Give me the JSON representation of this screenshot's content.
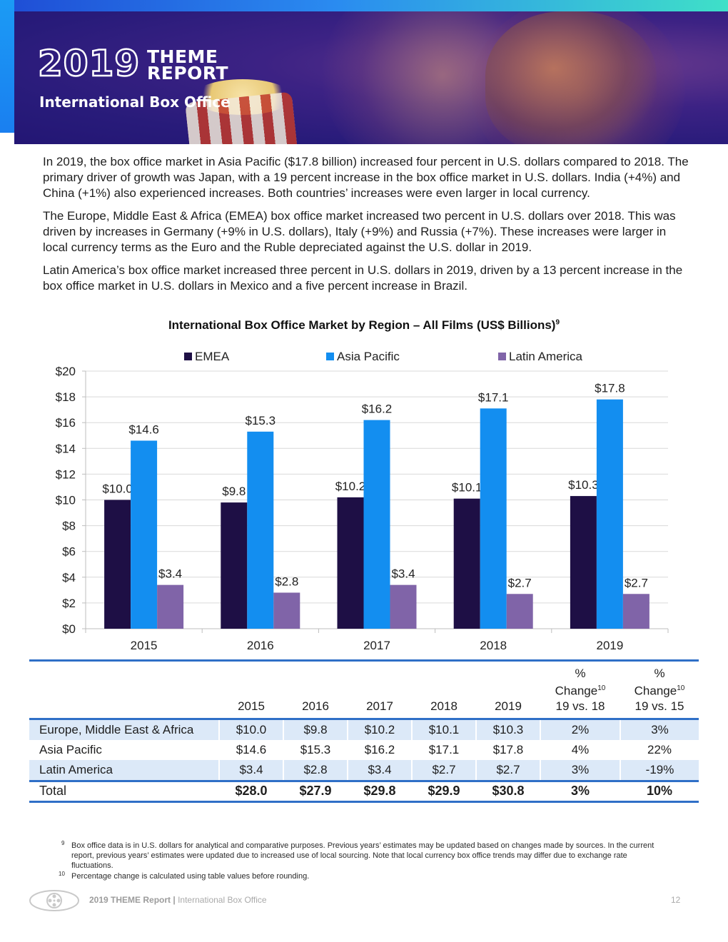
{
  "header": {
    "logo_year": "2019",
    "logo_word1": "THEME",
    "logo_word2": "REPORT",
    "subtitle": "International Box Office"
  },
  "body": {
    "paragraphs": [
      "In 2019, the box office market in Asia Pacific ($17.8 billion) increased four percent in U.S. dollars compared to 2018. The primary driver of growth was Japan, with a 19 percent increase in the box office market in U.S. dollars. India (+4%) and China (+1%) also experienced increases. Both countries’ increases were even larger in local currency.",
      "The Europe, Middle East & Africa (EMEA) box office market increased two percent in U.S. dollars over 2018. This was driven by increases in Germany (+9% in U.S. dollars), Italy (+9%) and Russia (+7%). These increases were larger in local currency terms as the Euro and the Ruble depreciated against the U.S. dollar in 2019.",
      "Latin America’s box office market increased three percent in U.S. dollars in 2019, driven by a 13 percent increase in the box office market in U.S. dollars in Mexico and a five percent increase in Brazil."
    ]
  },
  "chart_data": {
    "type": "bar",
    "title": "International Box Office Market by Region – All Films (US$ Billions)",
    "title_footnote": "9",
    "categories": [
      "2015",
      "2016",
      "2017",
      "2018",
      "2019"
    ],
    "series": [
      {
        "name": "EMEA",
        "color": "#1e0f45",
        "values": [
          10.0,
          9.8,
          10.2,
          10.1,
          10.3
        ],
        "labels": [
          "$10.0",
          "$9.8",
          "$10.2",
          "$10.1",
          "$10.3"
        ]
      },
      {
        "name": "Asia Pacific",
        "color": "#138ef0",
        "values": [
          14.6,
          15.3,
          16.2,
          17.1,
          17.8
        ],
        "labels": [
          "$14.6",
          "$15.3",
          "$16.2",
          "$17.1",
          "$17.8"
        ]
      },
      {
        "name": "Latin America",
        "color": "#8064a8",
        "values": [
          3.4,
          2.8,
          3.4,
          2.7,
          2.7
        ],
        "labels": [
          "$3.4",
          "$2.8",
          "$3.4",
          "$2.7",
          "$2.7"
        ]
      }
    ],
    "ylim": [
      0,
      20
    ],
    "yticks": [
      0,
      2,
      4,
      6,
      8,
      10,
      12,
      14,
      16,
      18,
      20
    ],
    "ytick_labels": [
      "$0",
      "$2",
      "$4",
      "$6",
      "$8",
      "$10",
      "$12",
      "$14",
      "$16",
      "$18",
      "$20"
    ],
    "xlabel": "",
    "ylabel": "",
    "grid": true,
    "legend": "top-center"
  },
  "table": {
    "headers": [
      "",
      "2015",
      "2016",
      "2017",
      "2018",
      "2019",
      "% Change 19 vs. 18",
      "% Change 19 vs. 15"
    ],
    "header_pct": "%",
    "header_change": "Change",
    "header_footnote": "10",
    "header_vs18": "19 vs. 18",
    "header_vs15": "19 vs. 15",
    "rows": [
      {
        "label": "Europe, Middle East & Africa",
        "cells": [
          "$10.0",
          "$9.8",
          "$10.2",
          "$10.1",
          "$10.3",
          "2%",
          "3%"
        ]
      },
      {
        "label": "Asia Pacific",
        "cells": [
          "$14.6",
          "$15.3",
          "$16.2",
          "$17.1",
          "$17.8",
          "4%",
          "22%"
        ]
      },
      {
        "label": "Latin America",
        "cells": [
          "$3.4",
          "$2.8",
          "$3.4",
          "$2.7",
          "$2.7",
          "3%",
          "-19%"
        ]
      }
    ],
    "total": {
      "label": "Total",
      "cells": [
        "$28.0",
        "$27.9",
        "$29.8",
        "$29.9",
        "$30.8",
        "3%",
        "10%"
      ]
    }
  },
  "footnotes": [
    {
      "num": "9",
      "text": "Box office data is in U.S. dollars for analytical and comparative purposes. Previous years’ estimates may be updated based on changes made by sources. In the current report, previous years’ estimates were updated due to increased use of local sourcing. Note that local currency box office trends may differ due to exchange rate fluctuations."
    },
    {
      "num": "10",
      "text": "Percentage change is calculated using table values before rounding."
    }
  ],
  "footer": {
    "report": "2019 THEME Report",
    "separator": "|",
    "section": "International Box Office",
    "page": "12"
  },
  "colors": {
    "accent": "#2f6fc7",
    "banner": "#281b7a",
    "row_shade": "#dce9f8"
  }
}
